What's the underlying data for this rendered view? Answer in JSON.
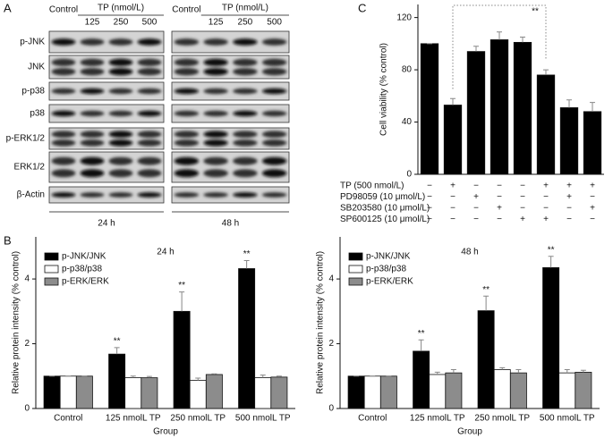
{
  "panel_a": {
    "label": "A",
    "blocks": [
      {
        "control": "Control",
        "treatment": "TP (nmol/L)",
        "doses": [
          "125",
          "250",
          "500"
        ],
        "time": "24 h"
      },
      {
        "control": "Control",
        "treatment": "TP (nmol/L)",
        "doses": [
          "125",
          "250",
          "500"
        ],
        "time": "48 h"
      }
    ],
    "rows": [
      "p-JNK",
      "JNK",
      "p-p38",
      "p38",
      "p-ERK1/2",
      "ERK1/2",
      "β-Actin"
    ]
  },
  "chart_data": [
    {
      "type": "bar",
      "panel_label": "B",
      "title": "24 h",
      "xlabel": "Group",
      "ylabel": "Relative protein intensity (% control)",
      "categories": [
        "Control",
        "125 nmolL TP",
        "250 nmolL TP",
        "500 nmolL TP"
      ],
      "series": [
        {
          "name": "p-JNK/JNK",
          "color": "#000000",
          "values": [
            1,
            1.68,
            3.0,
            4.32
          ],
          "errors": [
            0,
            0.2,
            0.6,
            0.25
          ],
          "significance": [
            null,
            "**",
            "**",
            "**"
          ]
        },
        {
          "name": "p-p38/p38",
          "color": "#ffffff",
          "values": [
            1,
            0.95,
            0.87,
            0.95
          ],
          "errors": [
            0,
            0.05,
            0.07,
            0.08
          ]
        },
        {
          "name": "p-ERK/ERK",
          "color": "#8c8c8c",
          "values": [
            1,
            0.95,
            1.05,
            0.97
          ],
          "errors": [
            0,
            0.04,
            0.02,
            0.03
          ]
        }
      ],
      "ylim": [
        0,
        5.3
      ],
      "yticks": [
        0,
        2,
        4
      ],
      "legend": "upper left"
    },
    {
      "type": "bar",
      "title": "48 h",
      "xlabel": "Group",
      "ylabel": "Relative protein intensity (% control)",
      "categories": [
        "Control",
        "125 nmolL TP",
        "250 nmolL TP",
        "500 nmolL TP"
      ],
      "series": [
        {
          "name": "p-JNK/JNK",
          "color": "#000000",
          "values": [
            1,
            1.77,
            3.02,
            4.35
          ],
          "errors": [
            0,
            0.35,
            0.45,
            0.35
          ],
          "significance": [
            null,
            "**",
            "**",
            "**"
          ]
        },
        {
          "name": "p-p38/p38",
          "color": "#ffffff",
          "values": [
            1,
            1.05,
            1.2,
            1.1
          ],
          "errors": [
            0,
            0.07,
            0.06,
            0.1
          ]
        },
        {
          "name": "p-ERK/ERK",
          "color": "#8c8c8c",
          "values": [
            1,
            1.1,
            1.1,
            1.12
          ],
          "errors": [
            0,
            0.1,
            0.1,
            0.06
          ]
        }
      ],
      "ylim": [
        0,
        5.3
      ],
      "yticks": [
        0,
        2,
        4
      ],
      "legend": "upper left"
    },
    {
      "type": "bar",
      "panel_label": "C",
      "ylabel": "Cell viability (% control)",
      "categories": [
        null,
        null,
        null,
        null,
        null,
        null,
        null,
        null
      ],
      "series": [
        {
          "color": "#000000",
          "values": [
            100,
            53,
            94,
            103,
            101,
            76,
            51,
            48
          ],
          "errors": [
            0,
            5,
            4,
            6,
            4,
            4,
            6,
            7
          ]
        }
      ],
      "annotation": "**",
      "treatments": [
        {
          "name": "TP (500 nmol/L)",
          "signs": [
            "−",
            "+",
            "−",
            "−",
            "−",
            "+",
            "+",
            "+"
          ]
        },
        {
          "name": "PD98059 (10 μmol/L)",
          "signs": [
            "−",
            "−",
            "+",
            "−",
            "−",
            "−",
            "+",
            "−"
          ]
        },
        {
          "name": "SB203580 (10 μmol/L)",
          "signs": [
            "−",
            "−",
            "−",
            "+",
            "−",
            "−",
            "−",
            "+"
          ]
        },
        {
          "name": "SP600125 (10 μmol/L)",
          "signs": [
            "−",
            "−",
            "−",
            "−",
            "+",
            "+",
            "−",
            "−"
          ]
        }
      ],
      "ylim": [
        0,
        130
      ],
      "yticks": [
        0,
        40,
        80,
        120
      ]
    }
  ]
}
